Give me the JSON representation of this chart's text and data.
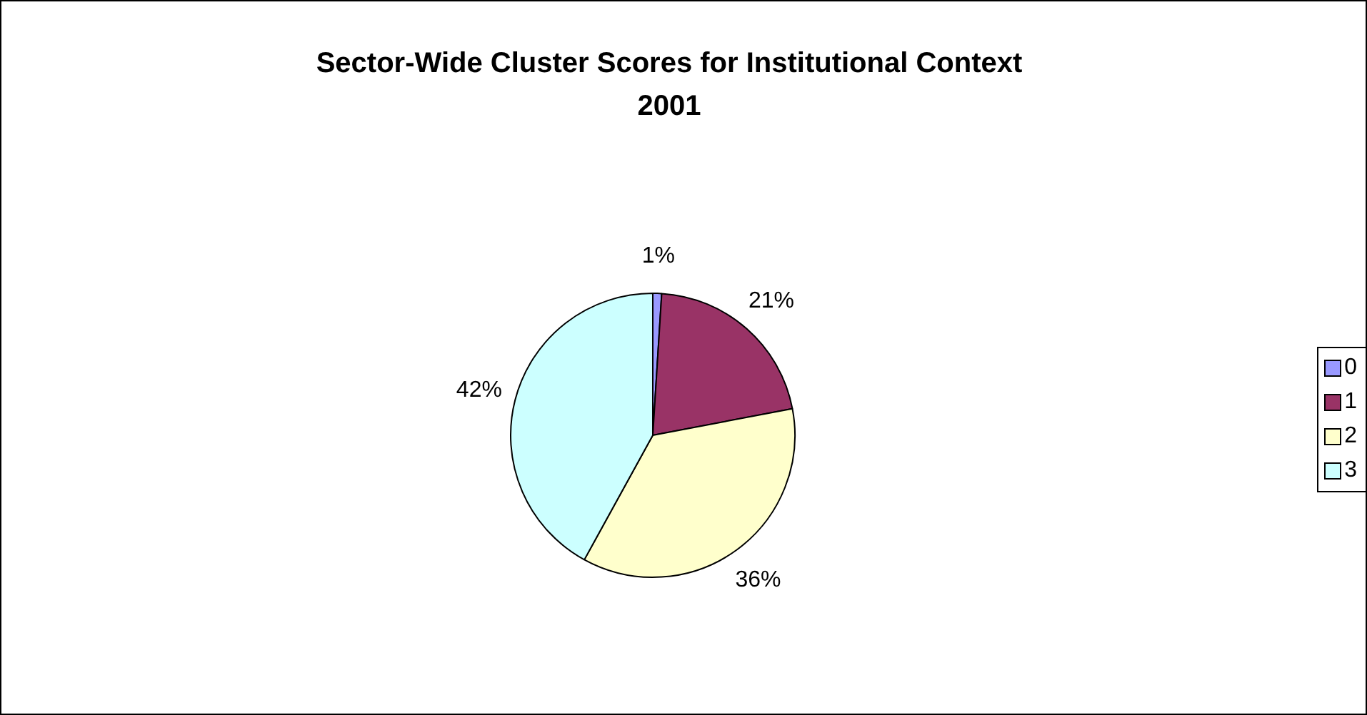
{
  "chart_data": {
    "type": "pie",
    "title": "Sector-Wide Cluster Scores for Institutional Context\n2001",
    "categories": [
      "0",
      "1",
      "2",
      "3"
    ],
    "values": [
      1,
      21,
      36,
      42
    ],
    "value_labels": [
      "1%",
      "21%",
      "36%",
      "42%"
    ],
    "colors": [
      "#9999ff",
      "#993366",
      "#ffffcc",
      "#ccffff"
    ],
    "legend": "right"
  }
}
